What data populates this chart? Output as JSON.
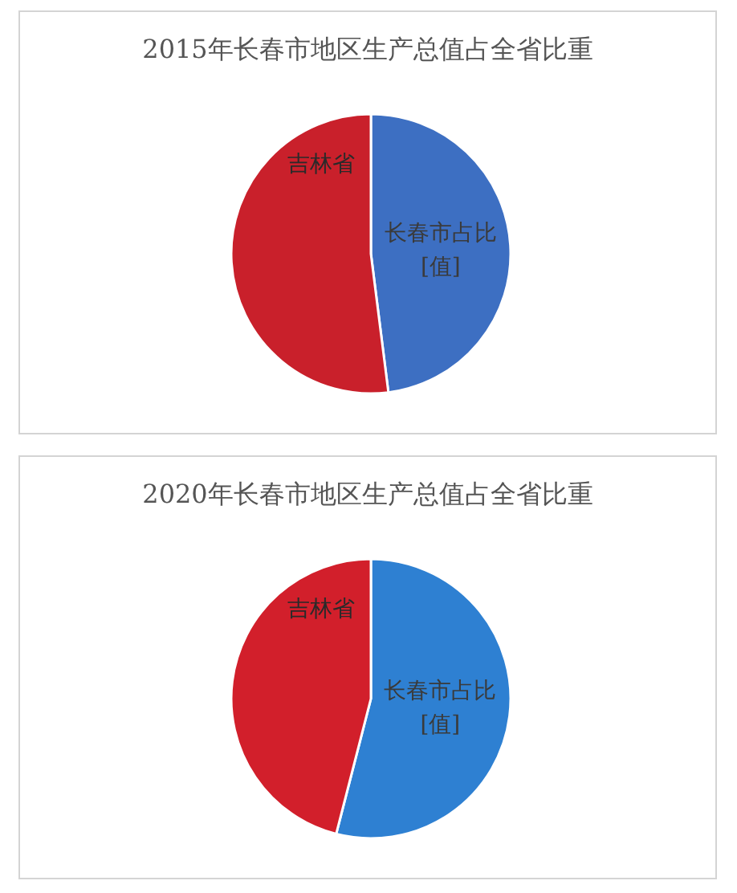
{
  "chart_data": [
    {
      "type": "pie",
      "title": "2015年长春市地区生产总值占全省比重",
      "categories": [
        "长春市占比",
        "吉林省"
      ],
      "values": [
        48,
        52
      ],
      "colors": [
        "#3d6fc2",
        "#c9202b"
      ],
      "value_labels": [
        "[值]",
        null
      ],
      "legend": false
    },
    {
      "type": "pie",
      "title": "2020年长春市地区生产总值占全省比重",
      "categories": [
        "长春市占比",
        "吉林省"
      ],
      "values": [
        54,
        46
      ],
      "colors": [
        "#2e80d2",
        "#d21f2b"
      ],
      "value_labels": [
        "[值]",
        null
      ],
      "legend": false
    }
  ]
}
